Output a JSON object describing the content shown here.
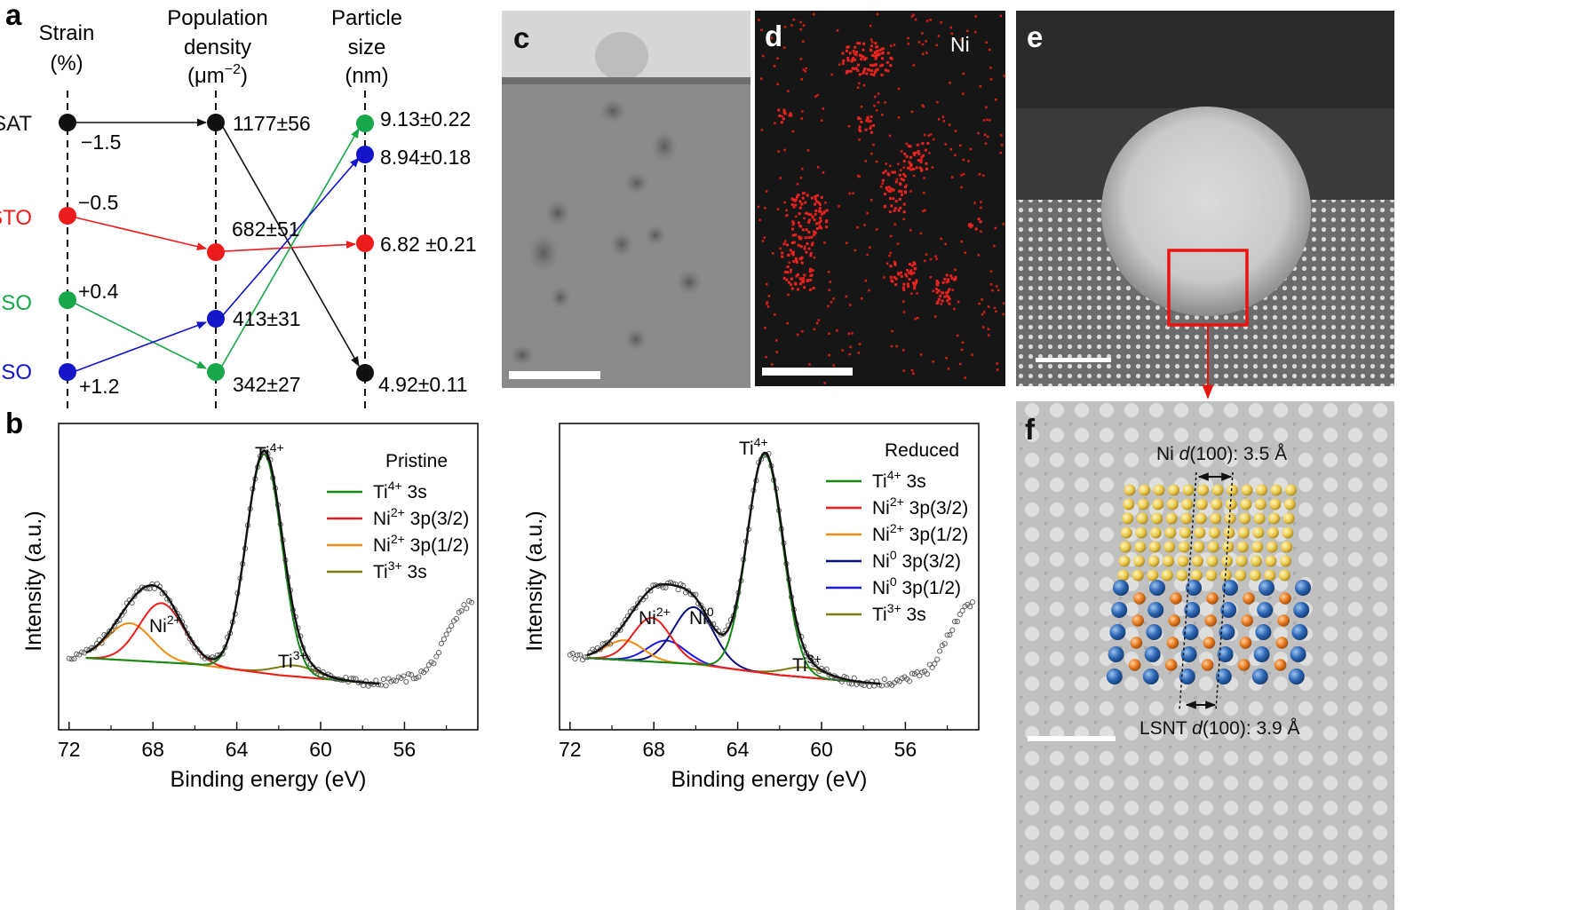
{
  "figure": {
    "panel_labels": {
      "a": "a",
      "b": "b",
      "c": "c",
      "d": "d",
      "e": "e",
      "f": "f"
    }
  },
  "panel_a": {
    "col_strain": [
      "Strain",
      "(%)"
    ],
    "col_density": [
      "Population",
      "density",
      "(μm",
      "−2",
      ")"
    ],
    "col_size": [
      "Particle",
      "size",
      "(nm)"
    ],
    "substrates": [
      {
        "name": "LSAT",
        "color": "#111111",
        "strain": "−1.5",
        "density": "1177±56",
        "size": "4.92±0.11"
      },
      {
        "name": "STO",
        "color": "#ee1c1c",
        "strain": "−0.5",
        "density": "682±51",
        "size": "6.82 ±0.21"
      },
      {
        "name": "DSO",
        "color": "#18a84a",
        "strain": "+0.4",
        "density": "342±27",
        "size": "9.13±0.22"
      },
      {
        "name": "GSO",
        "color": "#1414c8",
        "strain": "+1.2",
        "density": "413±31",
        "size": "8.94±0.18"
      }
    ]
  },
  "panel_c": {
    "description_label": ""
  },
  "panel_d": {
    "element": "Ni"
  },
  "panel_f": {
    "ni_spacing": [
      "Ni ",
      "d",
      "(100): 3.5 Å"
    ],
    "lsnt_spacing": [
      "LSNT ",
      "d",
      "(100): 3.9 Å"
    ]
  },
  "chart_data": [
    {
      "type": "line",
      "title": "",
      "legend_title": "Pristine",
      "xlabel": "Binding energy (eV)",
      "ylabel": "Intensity (a.u.)",
      "xlim": [
        72.5,
        52.5
      ],
      "x_ticks": [
        "72",
        "68",
        "64",
        "60",
        "56"
      ],
      "peak_labels": {
        "ti4": [
          "Ti",
          "4+"
        ],
        "ni2": [
          "Ni",
          "2+"
        ],
        "ti3": [
          "Ti",
          "3+"
        ]
      },
      "series": [
        {
          "name": [
            "Ti",
            "4+",
            " 3s"
          ],
          "color": "#138a13",
          "peaks": [
            [
              62.7,
              1.0,
              0.85
            ]
          ]
        },
        {
          "name": [
            "Ni",
            "2+",
            " 3p(3/2)"
          ],
          "color": "#ee1c1c",
          "peaks": [
            [
              67.6,
              0.27,
              1.05
            ]
          ]
        },
        {
          "name": [
            "Ni",
            "2+",
            " 3p(1/2)"
          ],
          "color": "#f28c14",
          "peaks": [
            [
              69.1,
              0.17,
              1.05
            ]
          ]
        },
        {
          "name": [
            "Ti",
            "3+",
            " 3s"
          ],
          "color": "#7a7a10",
          "peaks": [
            [
              61.2,
              0.05,
              1.0
            ]
          ]
        }
      ],
      "background": [
        [
          71.5,
          0.0
        ],
        [
          66.0,
          -0.03
        ],
        [
          62.0,
          -0.08
        ],
        [
          57.2,
          -0.12
        ]
      ],
      "fit_range": [
        71.2,
        57.2
      ],
      "data_range": [
        72.0,
        52.7
      ]
    },
    {
      "type": "line",
      "title": "",
      "legend_title": "Reduced",
      "xlabel": "Binding energy (eV)",
      "ylabel": "Intensity (a.u.)",
      "xlim": [
        72.5,
        52.5
      ],
      "x_ticks": [
        "72",
        "68",
        "64",
        "60",
        "56"
      ],
      "peak_labels": {
        "ti4": [
          "Ti",
          "4+"
        ],
        "ni2": [
          "Ni",
          "2+"
        ],
        "ni0": [
          "Ni",
          "0"
        ],
        "ti3": [
          "Ti",
          "3+"
        ]
      },
      "series": [
        {
          "name": [
            "Ti",
            "4+",
            " 3s"
          ],
          "color": "#138a13",
          "peaks": [
            [
              62.7,
              1.0,
              0.85
            ]
          ]
        },
        {
          "name": [
            "Ni",
            "2+",
            " 3p(3/2)"
          ],
          "color": "#ee1c1c",
          "peaks": [
            [
              68.1,
              0.2,
              0.9
            ]
          ]
        },
        {
          "name": [
            "Ni",
            "2+",
            " 3p(1/2)"
          ],
          "color": "#f28c14",
          "peaks": [
            [
              69.4,
              0.09,
              0.9
            ]
          ]
        },
        {
          "name": [
            "Ni",
            "0",
            " 3p(3/2)"
          ],
          "color": "#0a0a80",
          "peaks": [
            [
              66.1,
              0.26,
              0.95
            ]
          ]
        },
        {
          "name": [
            "Ni",
            "0",
            " 3p(1/2)"
          ],
          "color": "#1a1ae8",
          "peaks": [
            [
              67.4,
              0.1,
              0.9
            ]
          ]
        },
        {
          "name": [
            "Ti",
            "3+",
            " 3s"
          ],
          "color": "#7a7a10",
          "peaks": [
            [
              60.8,
              0.045,
              1.0
            ]
          ]
        }
      ],
      "background": [
        [
          71.5,
          0.0
        ],
        [
          66.0,
          -0.03
        ],
        [
          62.0,
          -0.08
        ],
        [
          57.2,
          -0.12
        ]
      ],
      "fit_range": [
        71.2,
        57.2
      ],
      "data_range": [
        72.0,
        52.7
      ]
    }
  ]
}
